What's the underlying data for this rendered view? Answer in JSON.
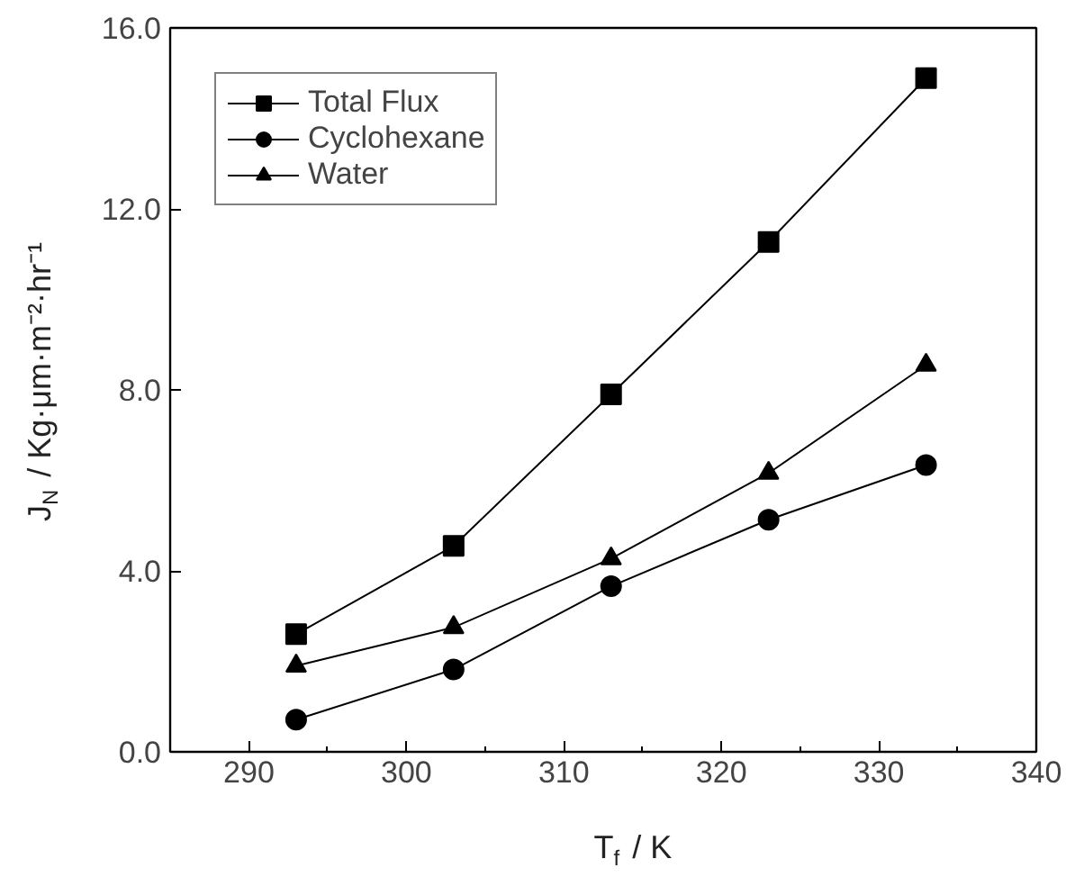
{
  "chart_data": {
    "type": "line",
    "xlabel": "T$_{f}$ / K",
    "ylabel": "J$_{N}$ / Kg·μm·m⁻²·hr⁻¹",
    "x": [
      293,
      303,
      313,
      323,
      333
    ],
    "series": [
      {
        "name": "Total Flux",
        "color": "#000000",
        "marker": "square",
        "values": [
          2.6,
          4.55,
          7.9,
          11.27,
          14.89
        ]
      },
      {
        "name": "Cyclohexane",
        "color": "#000000",
        "marker": "circle",
        "values": [
          0.71,
          1.82,
          3.66,
          5.13,
          6.34
        ]
      },
      {
        "name": "Water",
        "color": "#000000",
        "marker": "triangle",
        "values": [
          1.9,
          2.75,
          4.27,
          6.16,
          8.55
        ]
      }
    ],
    "xlim": [
      285,
      340
    ],
    "ylim": [
      0,
      16
    ],
    "xticks": [
      290,
      300,
      310,
      320,
      330,
      340
    ],
    "yticks": [
      {
        "value": 0,
        "label": "0.0"
      },
      {
        "value": 4,
        "label": "4.0"
      },
      {
        "value": 8,
        "label": "8.0"
      },
      {
        "value": 12,
        "label": "12.0"
      },
      {
        "value": 16,
        "label": "16.0"
      }
    ],
    "grid": false,
    "legend": "top left",
    "line_style": "solid"
  }
}
